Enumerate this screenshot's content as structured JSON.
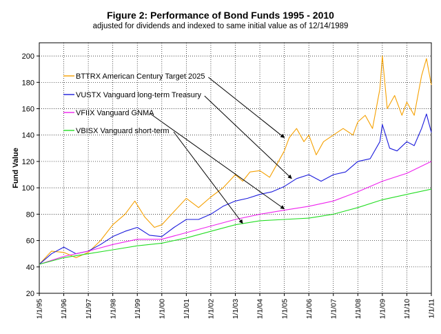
{
  "chart_data": {
    "type": "line",
    "title": "Figure 2: Performance of Bond Funds 1995 - 2010",
    "subtitle": "adjusted for dividends and indexed to same initial value as of 12/14/1989",
    "xlabel": "",
    "ylabel": "Fund Value",
    "ylim": [
      20,
      210
    ],
    "yticks": [
      20,
      40,
      60,
      80,
      100,
      120,
      140,
      160,
      180,
      200
    ],
    "xlim": [
      1995.0,
      2011.0
    ],
    "xtick_labels": [
      "1/1/95",
      "1/1/96",
      "1/1/97",
      "1/1/98",
      "1/1/99",
      "1/1/00",
      "1/1/01",
      "1/1/02",
      "1/1/03",
      "1/1/04",
      "1/1/05",
      "1/1/06",
      "1/1/07",
      "1/1/08",
      "1/1/09",
      "1/1/10",
      "1/1/11"
    ],
    "grid": true,
    "legend": "annotations with arrows (top-left)",
    "series": [
      {
        "name": "BTTRX American Century Target 2025",
        "color": "#f5a000",
        "x": [
          1995.0,
          1995.5,
          1996.0,
          1996.5,
          1997.0,
          1997.5,
          1998.0,
          1998.5,
          1998.9,
          1999.3,
          1999.7,
          2000.0,
          2000.5,
          2001.0,
          2001.5,
          2002.0,
          2002.5,
          2003.0,
          2003.3,
          2003.6,
          2004.0,
          2004.4,
          2004.7,
          2005.0,
          2005.2,
          2005.5,
          2005.8,
          2006.0,
          2006.3,
          2006.6,
          2007.0,
          2007.4,
          2007.8,
          2008.0,
          2008.3,
          2008.6,
          2008.9,
          2009.0,
          2009.2,
          2009.5,
          2009.8,
          2010.0,
          2010.3,
          2010.6,
          2010.8,
          2011.0
        ],
        "values": [
          42,
          52,
          51,
          47,
          51,
          60,
          72,
          80,
          90,
          78,
          70,
          72,
          82,
          92,
          85,
          93,
          100,
          110,
          105,
          112,
          113,
          108,
          118,
          128,
          138,
          145,
          135,
          140,
          125,
          135,
          140,
          145,
          140,
          150,
          155,
          145,
          175,
          200,
          160,
          170,
          155,
          165,
          155,
          185,
          198,
          178
        ]
      },
      {
        "name": "VUSTX Vanguard long-term Treasury",
        "color": "#1a1adc",
        "x": [
          1995.0,
          1995.5,
          1996.0,
          1996.5,
          1997.0,
          1997.5,
          1998.0,
          1998.5,
          1999.0,
          1999.5,
          2000.0,
          2000.5,
          2001.0,
          2001.5,
          2002.0,
          2002.5,
          2003.0,
          2003.5,
          2004.0,
          2004.5,
          2005.0,
          2005.5,
          2006.0,
          2006.5,
          2007.0,
          2007.5,
          2008.0,
          2008.5,
          2008.9,
          2009.0,
          2009.3,
          2009.6,
          2010.0,
          2010.3,
          2010.6,
          2010.8,
          2011.0
        ],
        "values": [
          42,
          50,
          55,
          50,
          52,
          57,
          63,
          67,
          70,
          64,
          63,
          70,
          76,
          76,
          80,
          86,
          90,
          92,
          95,
          97,
          101,
          107,
          110,
          105,
          110,
          112,
          120,
          122,
          135,
          148,
          130,
          128,
          135,
          132,
          145,
          156,
          142
        ]
      },
      {
        "name": "VFIIX Vanguard GNMA",
        "color": "#ee22ee",
        "x": [
          1995.0,
          1996.0,
          1997.0,
          1998.0,
          1999.0,
          2000.0,
          2001.0,
          2002.0,
          2003.0,
          2004.0,
          2005.0,
          2006.0,
          2007.0,
          2008.0,
          2009.0,
          2010.0,
          2011.0
        ],
        "values": [
          42,
          48,
          52,
          57,
          61,
          61,
          66,
          71,
          76,
          80,
          83,
          86,
          90,
          97,
          105,
          111,
          120
        ]
      },
      {
        "name": "VBISX Vanguard short-term",
        "color": "#22dd22",
        "x": [
          1995.0,
          1996.0,
          1997.0,
          1998.0,
          1999.0,
          2000.0,
          2001.0,
          2002.0,
          2003.0,
          2004.0,
          2005.0,
          2006.0,
          2007.0,
          2008.0,
          2009.0,
          2010.0,
          2011.0
        ],
        "values": [
          42,
          47,
          50,
          53,
          56,
          58,
          62,
          67,
          72,
          75,
          76,
          77,
          80,
          85,
          91,
          95,
          99
        ]
      }
    ],
    "annotations": [
      {
        "text": "BTTRX American Century Target 2025",
        "target": [
          2005.0,
          138
        ]
      },
      {
        "text": "VUSTX Vanguard long-term Treasury",
        "target": [
          2005.3,
          107
        ]
      },
      {
        "text": "VFIIX Vanguard GNMA",
        "target": [
          2005.0,
          84
        ]
      },
      {
        "text": "VBISX Vanguard short-term",
        "target": [
          2003.3,
          73
        ]
      }
    ]
  }
}
